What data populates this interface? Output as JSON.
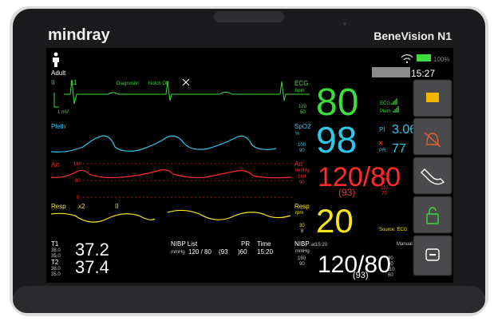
{
  "device": {
    "brand": "mindray",
    "model": "BeneVision N1"
  },
  "status": {
    "patient_type": "Adult",
    "battery": "100%",
    "time": "15:27"
  },
  "waves": {
    "ecg": {
      "lead": "II",
      "gain": "x1",
      "mode": "Diagnostic",
      "filter": "Notch Off",
      "scale": "1 mV"
    },
    "pleth": {
      "label": "Pleth"
    },
    "art": {
      "label": "Art",
      "scale": [
        "160",
        "80",
        "0"
      ]
    },
    "resp": {
      "label": "Resp",
      "gain": "x2",
      "lead": "II"
    }
  },
  "params": {
    "ecg": {
      "label": "ECG",
      "unit": "bpm",
      "value": "80",
      "limits": [
        "120",
        "50"
      ],
      "sources": [
        "ECG",
        "Pleth"
      ]
    },
    "spo2": {
      "label": "SpO2",
      "unit": "%",
      "value": "98",
      "limits": [
        "100",
        "90"
      ],
      "pi_label": "PI",
      "pi": "3.06",
      "pr_label": "PR",
      "pr": "77"
    },
    "art": {
      "label": "Art",
      "unit": "mmHg",
      "scale": [
        "160",
        "90"
      ],
      "value": "120/80",
      "mean": "(93)",
      "limits": [
        "90",
        "50",
        "110",
        "70"
      ]
    },
    "resp": {
      "label": "Resp",
      "unit": "rpm",
      "value": "20",
      "limits": [
        "30",
        "8"
      ],
      "source": "Source: ECG"
    },
    "temp": [
      {
        "label": "T1",
        "limits": [
          "38.0",
          "35.0"
        ],
        "value": "37.2"
      },
      {
        "label": "T2",
        "limits": [
          "38.0",
          "35.0"
        ],
        "value": "37.4"
      }
    ],
    "nibp_list": {
      "title": "NIBP List",
      "pr_header": "PR",
      "time_header": "Time",
      "unit": "mmHg",
      "pressure": "120 / 80",
      "mean": "(93",
      "pr": ")60",
      "time": "15:20"
    },
    "nibp": {
      "label": "NIBP",
      "time": "at15:20",
      "unit": "mmHg",
      "scale": [
        "160",
        "90"
      ],
      "mode": "Manual",
      "value": "120/80",
      "mean": "(93)",
      "limits": [
        "90",
        "50",
        "110",
        "60"
      ]
    }
  }
}
